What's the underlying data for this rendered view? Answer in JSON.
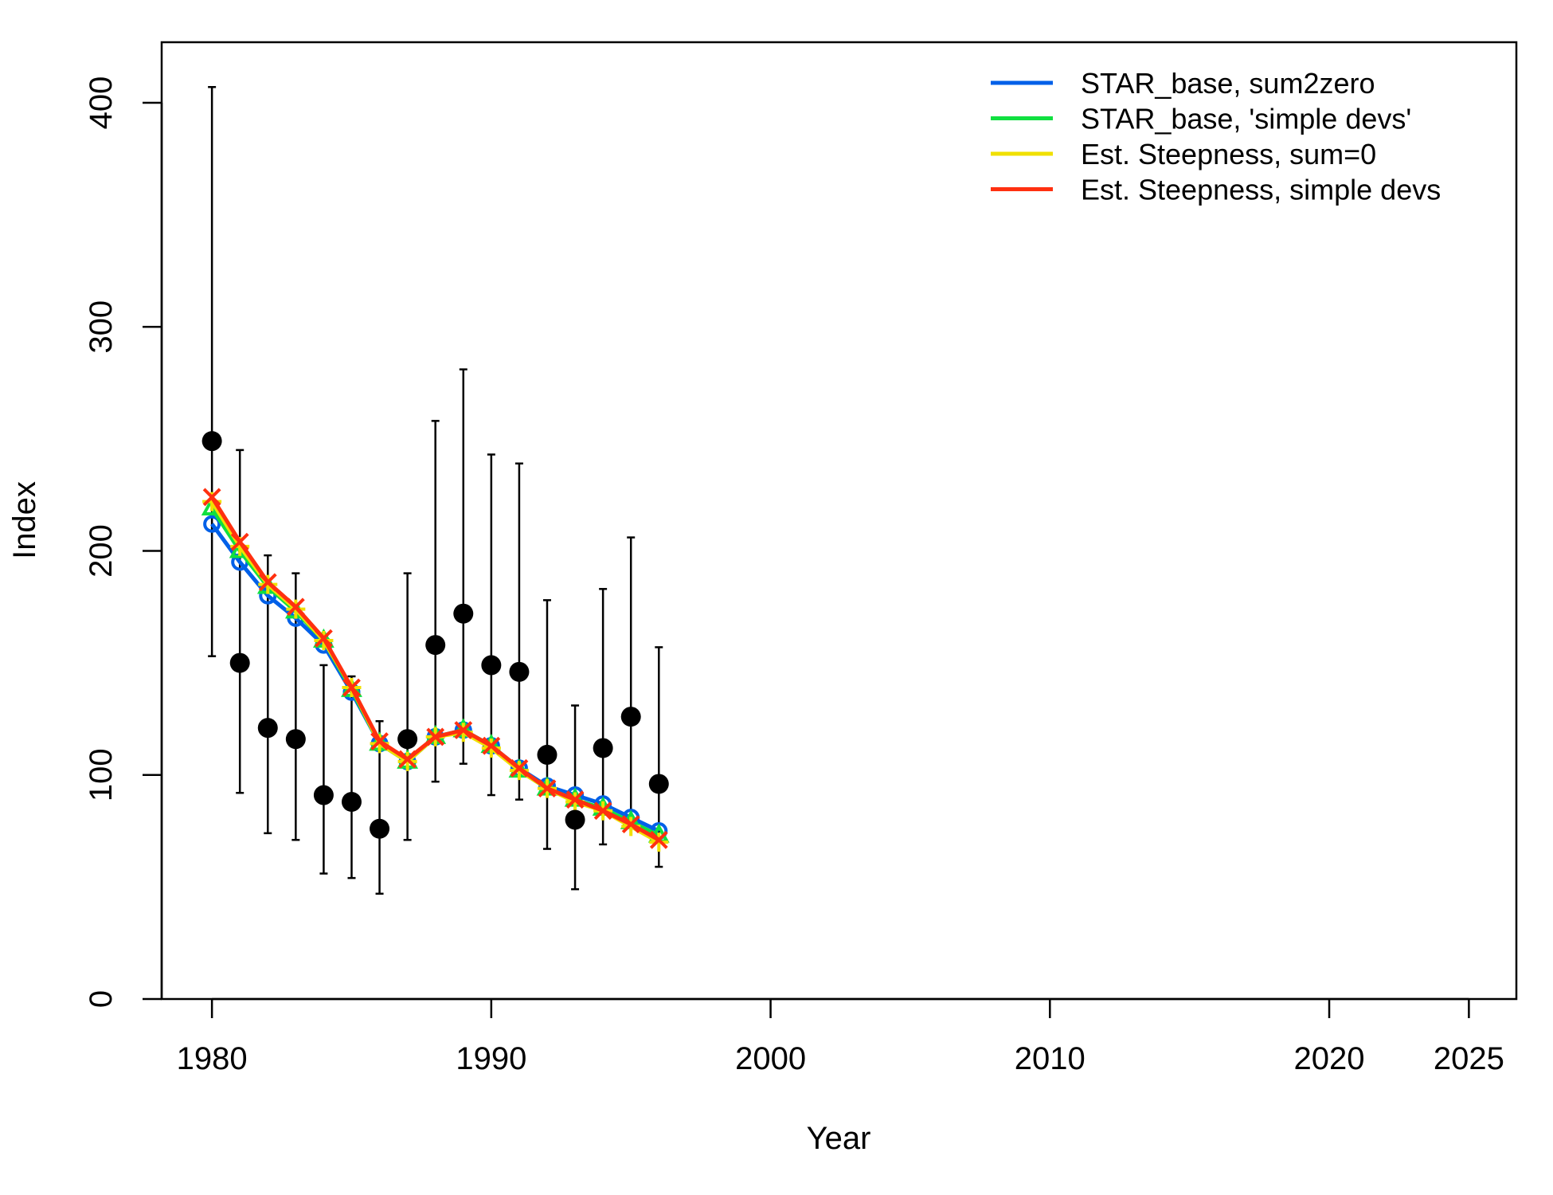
{
  "chart_data": {
    "type": "line",
    "title": "",
    "xlabel": "Year",
    "ylabel": "Index",
    "xlim": [
      1978.2,
      2026.7
    ],
    "ylim": [
      0,
      427
    ],
    "x_ticks": [
      1980,
      1990,
      2000,
      2010,
      2020,
      2025
    ],
    "y_ticks": [
      0,
      100,
      200,
      300,
      400
    ],
    "grid": false,
    "legend_position": "top-right",
    "observed": {
      "years": [
        1980,
        1981,
        1982,
        1983,
        1984,
        1985,
        1986,
        1987,
        1988,
        1989,
        1990,
        1991,
        1992,
        1993,
        1994,
        1995,
        1996
      ],
      "values": [
        249,
        150,
        121,
        116,
        91,
        88,
        76,
        116,
        158,
        172,
        149,
        146,
        109,
        80,
        112,
        126,
        96
      ],
      "lower": [
        153,
        92,
        74,
        71,
        56,
        54,
        47,
        71,
        97,
        105,
        91,
        89,
        67,
        49,
        69,
        77,
        59
      ],
      "upper": [
        407,
        245,
        198,
        190,
        149,
        144,
        124,
        190,
        258,
        281,
        243,
        239,
        178,
        131,
        183,
        206,
        157
      ],
      "color": "#000000"
    },
    "years": [
      1980,
      1981,
      1982,
      1983,
      1984,
      1985,
      1986,
      1987,
      1988,
      1989,
      1990,
      1991,
      1992,
      1993,
      1994,
      1995,
      1996
    ],
    "series": [
      {
        "name": "STAR_base, sum2zero",
        "color": "#0060E8",
        "marker": "circle",
        "values": [
          212,
          195,
          180,
          170,
          158,
          137,
          114,
          106,
          117,
          120,
          113,
          103,
          95,
          91,
          87,
          81,
          75
        ]
      },
      {
        "name": "STAR_base, 'simple devs'",
        "color": "#10E040",
        "marker": "triangle",
        "values": [
          219,
          200,
          184,
          173,
          160,
          138,
          114,
          106,
          117,
          120,
          113,
          102,
          94,
          89,
          85,
          79,
          73
        ]
      },
      {
        "name": "Est. Steepness, sum=0",
        "color": "#F0E000",
        "marker": "plus",
        "values": [
          222,
          202,
          185,
          174,
          160,
          139,
          114,
          106,
          117,
          119,
          112,
          102,
          94,
          88,
          84,
          77,
          70
        ]
      },
      {
        "name": "Est. Steepness, simple devs",
        "color": "#FF3010",
        "marker": "x",
        "values": [
          224,
          204,
          186,
          175,
          161,
          139,
          115,
          107,
          117,
          120,
          113,
          103,
          94,
          89,
          84,
          78,
          71
        ]
      }
    ]
  }
}
